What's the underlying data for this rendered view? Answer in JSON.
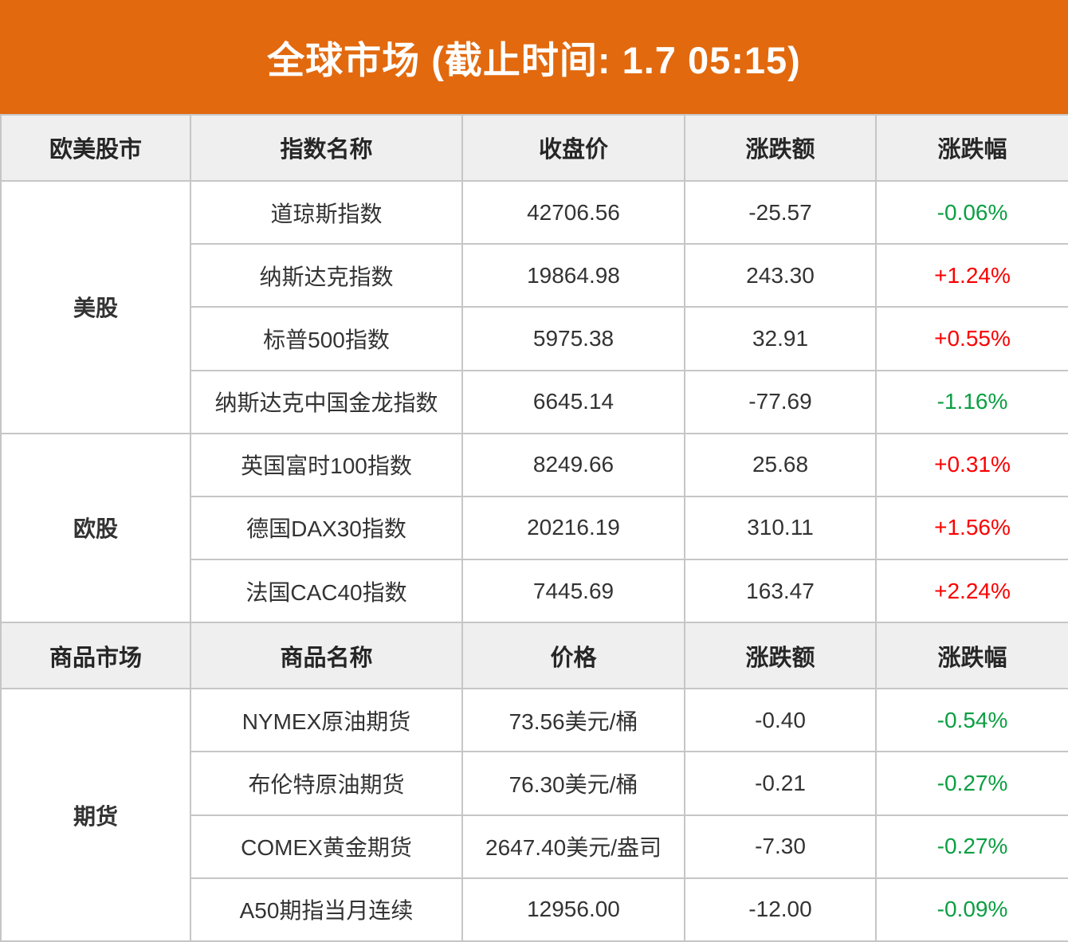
{
  "banner": {
    "title": "全球市场 (截止时间: 1.7 05:15)"
  },
  "colors": {
    "banner_bg": "#E2690E",
    "up_red": "#FA0000",
    "down_green": "#0B9F42",
    "header_bg": "#EFEFEF",
    "border": "#C6C6C6"
  },
  "chart_data": [
    {
      "type": "table",
      "title": "全球市场 (截止时间: 1.7 05:15)",
      "columns": [
        "欧美股市",
        "指数名称",
        "收盘价",
        "涨跌额",
        "涨跌幅"
      ],
      "groups": [
        {
          "label": "美股",
          "rows": [
            [
              "道琼斯指数",
              "42706.56",
              "-25.57",
              "-0.06%"
            ],
            [
              "纳斯达克指数",
              "19864.98",
              "243.30",
              "+1.24%"
            ],
            [
              "标普500指数",
              "5975.38",
              "32.91",
              "+0.55%"
            ],
            [
              "纳斯达克中国金龙指数",
              "6645.14",
              "-77.69",
              "-1.16%"
            ]
          ]
        },
        {
          "label": "欧股",
          "rows": [
            [
              "英国富时100指数",
              "8249.66",
              "25.68",
              "+0.31%"
            ],
            [
              "德国DAX30指数",
              "20216.19",
              "310.11",
              "+1.56%"
            ],
            [
              "法国CAC40指数",
              "7445.69",
              "163.47",
              "+2.24%"
            ]
          ]
        }
      ]
    },
    {
      "type": "table",
      "title": "",
      "columns": [
        "商品市场",
        "商品名称",
        "价格",
        "涨跌额",
        "涨跌幅"
      ],
      "groups": [
        {
          "label": "期货",
          "rows": [
            [
              "NYMEX原油期货",
              "73.56美元/桶",
              "-0.40",
              "-0.54%"
            ],
            [
              "布伦特原油期货",
              "76.30美元/桶",
              "-0.21",
              "-0.27%"
            ],
            [
              "COMEX黄金期货",
              "2647.40美元/盎司",
              "-7.30",
              "-0.27%"
            ],
            [
              "A50期指当月连续",
              "12956.00",
              "-12.00",
              "-0.09%"
            ]
          ]
        }
      ]
    }
  ]
}
